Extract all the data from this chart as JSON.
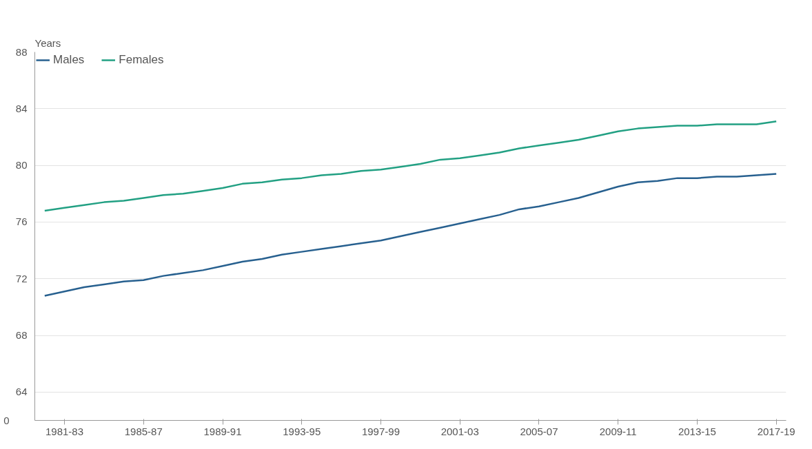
{
  "chart_data": {
    "type": "line",
    "ylabel": "Years",
    "categories": [
      null,
      "1981-83",
      null,
      null,
      null,
      "1985-87",
      null,
      null,
      null,
      "1989-91",
      null,
      null,
      null,
      "1993-95",
      null,
      null,
      null,
      "1997-99",
      null,
      null,
      null,
      "2001-03",
      null,
      null,
      null,
      "2005-07",
      null,
      null,
      null,
      "2009-11",
      null,
      null,
      null,
      "2013-15",
      null,
      null,
      null,
      "2017-19"
    ],
    "series": [
      {
        "name": "Males",
        "color": "#27608f",
        "values": [
          70.8,
          71.1,
          71.4,
          71.6,
          71.8,
          71.9,
          72.2,
          72.4,
          72.6,
          72.9,
          73.2,
          73.4,
          73.7,
          73.9,
          74.1,
          74.3,
          74.5,
          74.7,
          75.0,
          75.3,
          75.6,
          75.9,
          76.2,
          76.5,
          76.9,
          77.1,
          77.4,
          77.7,
          78.1,
          78.5,
          78.8,
          78.9,
          79.1,
          79.1,
          79.2,
          79.2,
          79.3,
          79.4
        ]
      },
      {
        "name": "Females",
        "color": "#22a083",
        "values": [
          76.8,
          77.0,
          77.2,
          77.4,
          77.5,
          77.7,
          77.9,
          78.0,
          78.2,
          78.4,
          78.7,
          78.8,
          79.0,
          79.1,
          79.3,
          79.4,
          79.6,
          79.7,
          79.9,
          80.1,
          80.4,
          80.5,
          80.7,
          80.9,
          81.2,
          81.4,
          81.6,
          81.8,
          82.1,
          82.4,
          82.6,
          82.7,
          82.8,
          82.8,
          82.9,
          82.9,
          82.9,
          83.1
        ]
      }
    ],
    "ylim": [
      62,
      88
    ],
    "yticks": [
      64,
      68,
      72,
      76,
      80,
      84,
      88
    ],
    "annotations": [
      "0"
    ],
    "grid": "y",
    "legend": "top left",
    "marker": "none",
    "line_style": "solid"
  }
}
